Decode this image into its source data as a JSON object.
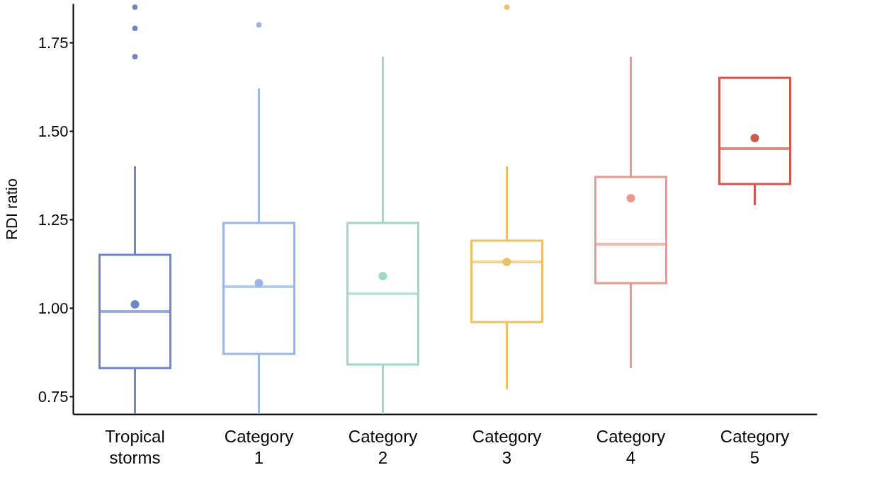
{
  "chart_data": {
    "type": "box",
    "ylabel": "RDI ratio",
    "categories": [
      "Tropical storms",
      "Category 1",
      "Category 2",
      "Category 3",
      "Category 4",
      "Category 5"
    ],
    "colors": [
      "#6f87c9",
      "#9ab6e6",
      "#9fd9c6",
      "#f0c064",
      "#ea9a8c",
      "#d2574e"
    ],
    "boxes": [
      {
        "low": 0.7,
        "q1": 0.83,
        "median": 0.99,
        "q3": 1.15,
        "high": 1.4,
        "mean": 1.01,
        "outliers": [
          1.71,
          1.79,
          1.85
        ]
      },
      {
        "low": 0.7,
        "q1": 0.87,
        "median": 1.06,
        "q3": 1.24,
        "high": 1.62,
        "mean": 1.07,
        "outliers": [
          1.8
        ]
      },
      {
        "low": 0.7,
        "q1": 0.84,
        "median": 1.04,
        "q3": 1.24,
        "high": 1.71,
        "mean": 1.09
      },
      {
        "low": 0.77,
        "q1": 0.96,
        "median": 1.13,
        "q3": 1.19,
        "high": 1.4,
        "mean": 1.13,
        "outliers": [
          1.85
        ]
      },
      {
        "low": 0.83,
        "q1": 1.07,
        "median": 1.18,
        "q3": 1.37,
        "high": 1.71,
        "mean": 1.31
      },
      {
        "low": 1.29,
        "q1": 1.35,
        "median": 1.45,
        "q3": 1.65,
        "high": 1.65,
        "mean": 1.48
      }
    ],
    "ylim": [
      0.7,
      1.86
    ],
    "yticks": [
      0.75,
      {
        "value": 1,
        "label": "1.00"
      },
      1.25,
      {
        "value": 1.5,
        "label": "1.50"
      },
      1.75
    ],
    "grid": false
  }
}
